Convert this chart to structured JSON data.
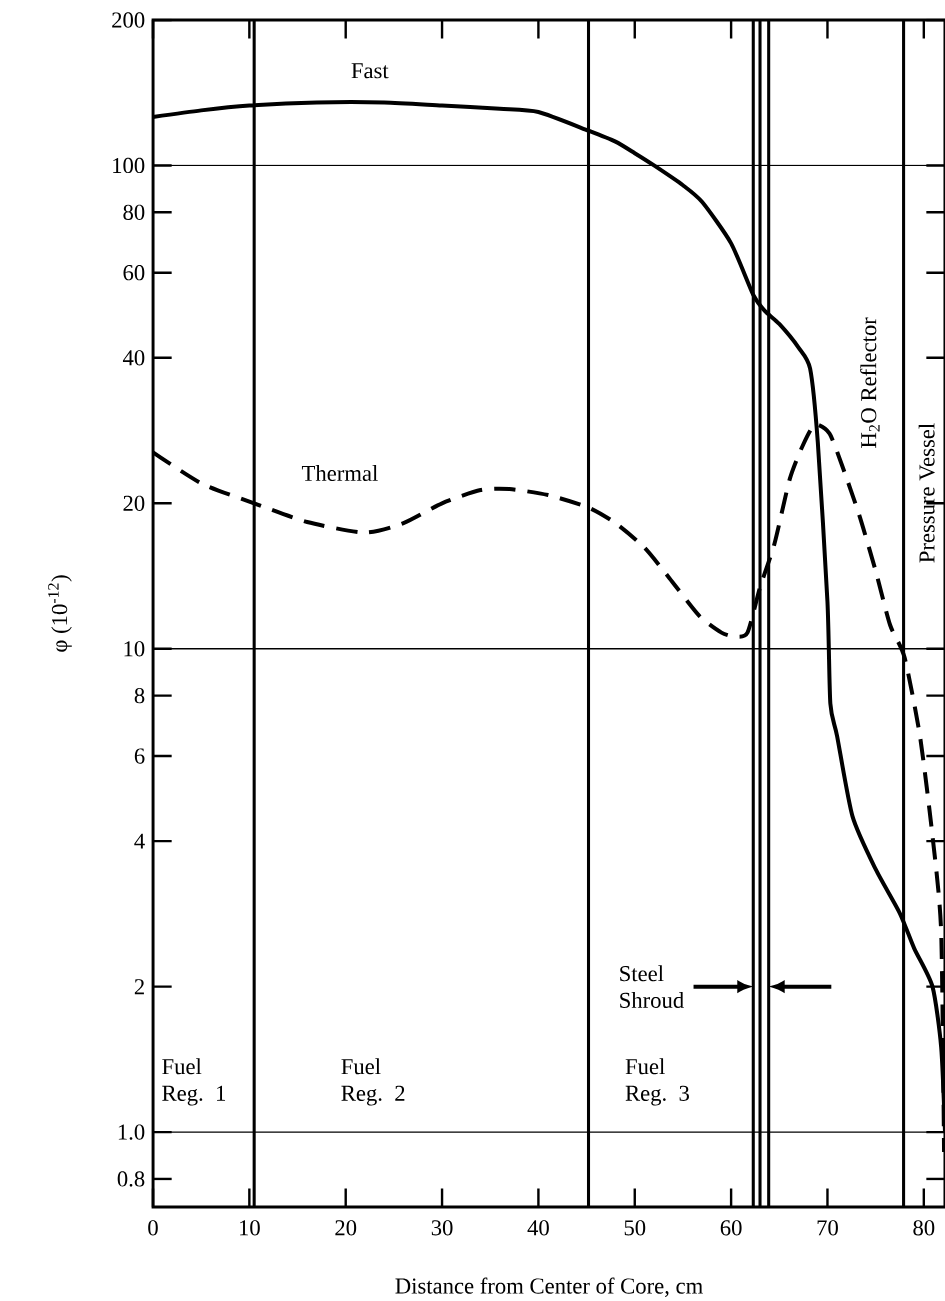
{
  "chart_data": {
    "type": "line",
    "xlabel": "Distance from Center of Core, cm",
    "ylabel": "φ (10$^{-12}$)",
    "xlim": [
      0,
      82.2
    ],
    "ylim": [
      0.7,
      200
    ],
    "log": "y",
    "xticks": [
      0,
      10,
      20,
      30,
      40,
      50,
      60,
      70,
      80
    ],
    "yticks": [
      200,
      100,
      80,
      60,
      40,
      20,
      10,
      8,
      6,
      4,
      2,
      {
        "value": 1,
        "label": "1.0"
      },
      {
        "value": 0.8,
        "label": "0.8"
      }
    ],
    "series": [
      {
        "color": "#000000",
        "line_style": "solid",
        "x": [
          0,
          5,
          10,
          17,
          24,
          30,
          36,
          40,
          45.2,
          48,
          50,
          52,
          55,
          57,
          60,
          62.3,
          63.5,
          65,
          67,
          68.2,
          69,
          70,
          70.3,
          71,
          72.6,
          75,
          77.5,
          79,
          80.9,
          81.8,
          82.2
        ],
        "values": [
          126,
          130,
          133,
          135,
          135,
          133,
          131,
          129,
          118,
          112,
          106,
          100,
          91,
          84,
          69,
          54,
          50,
          47,
          42,
          38,
          26.7,
          12.5,
          7.7,
          6.6,
          4.5,
          3.5,
          2.84,
          2.4,
          2.0,
          1.5,
          1.0
        ]
      },
      {
        "color": "#000000",
        "line_style": "dashed",
        "x": [
          0,
          5,
          10.5,
          16,
          22,
          26,
          30,
          34,
          37,
          41,
          45.2,
          48,
          51,
          53.6,
          56.7,
          59,
          60.4,
          61.7,
          63,
          64.5,
          66.1,
          67.5,
          68.7,
          70.2,
          71.5,
          73.3,
          75,
          76.5,
          78,
          79.6,
          80.9,
          81.8,
          82.1
        ],
        "values": [
          25.5,
          22,
          20,
          18.3,
          17.4,
          18.2,
          20,
          21.3,
          21.4,
          20.8,
          19.6,
          18.2,
          16.2,
          14,
          11.7,
          10.8,
          10.6,
          10.8,
          13.4,
          16.5,
          22.5,
          26.5,
          29.1,
          27.9,
          24,
          18.9,
          14.5,
          11.2,
          9.6,
          6.6,
          4.1,
          2.6,
          0.91
        ]
      }
    ],
    "ref_lines": [
      {
        "axis": "x",
        "value": 10.5
      },
      {
        "axis": "x",
        "value": 45.2
      },
      {
        "axis": "x",
        "value": 62.3
      },
      {
        "axis": "x",
        "value": 63.0
      },
      {
        "axis": "x",
        "value": 63.9
      },
      {
        "axis": "x",
        "value": 77.9
      },
      {
        "axis": "y",
        "value": 100
      },
      {
        "axis": "y",
        "value": 10
      },
      {
        "axis": "y",
        "value": 1
      }
    ],
    "annotations": [
      "Fast",
      "Thermal",
      "Fuel Reg. 1",
      "Fuel Reg. 2",
      "Fuel Reg. 3",
      "Steel Shroud",
      "H$_{2}$O Reflector",
      "Pressure Vessel"
    ]
  }
}
